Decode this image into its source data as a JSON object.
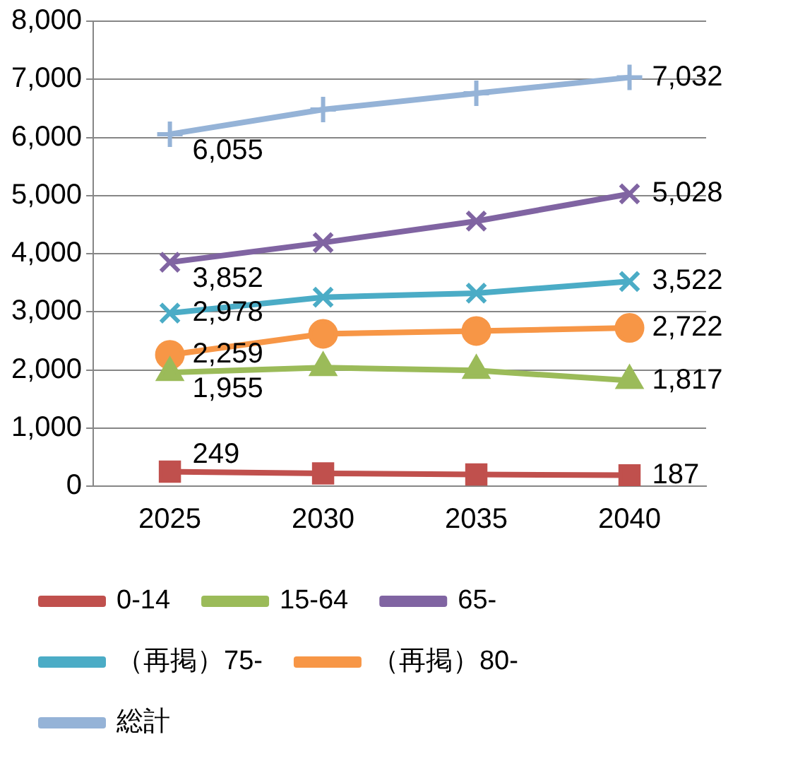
{
  "chart_data": {
    "type": "line",
    "categories": [
      "2025",
      "2030",
      "2035",
      "2040"
    ],
    "ylim": [
      0,
      8000
    ],
    "yticks": [
      {
        "value": 0,
        "label": "0"
      },
      {
        "value": 1000,
        "label": "1,000"
      },
      {
        "value": 2000,
        "label": "2,000"
      },
      {
        "value": 3000,
        "label": "3,000"
      },
      {
        "value": 4000,
        "label": "4,000"
      },
      {
        "value": 5000,
        "label": "5,000"
      },
      {
        "value": 6000,
        "label": "6,000"
      },
      {
        "value": 7000,
        "label": "7,000"
      },
      {
        "value": 8000,
        "label": "8,000"
      }
    ],
    "grid": "y",
    "legend": "bottom",
    "series": [
      {
        "name": "0-14",
        "color": "#c0504d",
        "marker": "square",
        "values": [
          249,
          220,
          200,
          187
        ],
        "value_labels": [
          "249",
          null,
          null,
          "187"
        ]
      },
      {
        "name": "15-64",
        "color": "#9bbb59",
        "marker": "triangle",
        "values": [
          1955,
          2040,
          1990,
          1817
        ],
        "value_labels": [
          "1,955",
          null,
          null,
          "1,817"
        ]
      },
      {
        "name": "65-",
        "color": "#8064a2",
        "marker": "cross",
        "values": [
          3852,
          4190,
          4560,
          5028
        ],
        "value_labels": [
          "3,852",
          null,
          null,
          "5,028"
        ]
      },
      {
        "name": "（再掲）75-",
        "color": "#4bacc6",
        "marker": "cross",
        "values": [
          2978,
          3250,
          3320,
          3522
        ],
        "value_labels": [
          "2,978",
          null,
          null,
          "3,522"
        ]
      },
      {
        "name": "（再掲）80-",
        "color": "#f79646",
        "marker": "circle",
        "values": [
          2259,
          2620,
          2670,
          2722
        ],
        "value_labels": [
          "2,259",
          null,
          null,
          "2,722"
        ]
      },
      {
        "name": "総計",
        "color": "#95b3d7",
        "marker": "plus",
        "values": [
          6055,
          6480,
          6760,
          7032
        ],
        "value_labels": [
          "6,055",
          null,
          null,
          "7,032"
        ]
      }
    ]
  }
}
